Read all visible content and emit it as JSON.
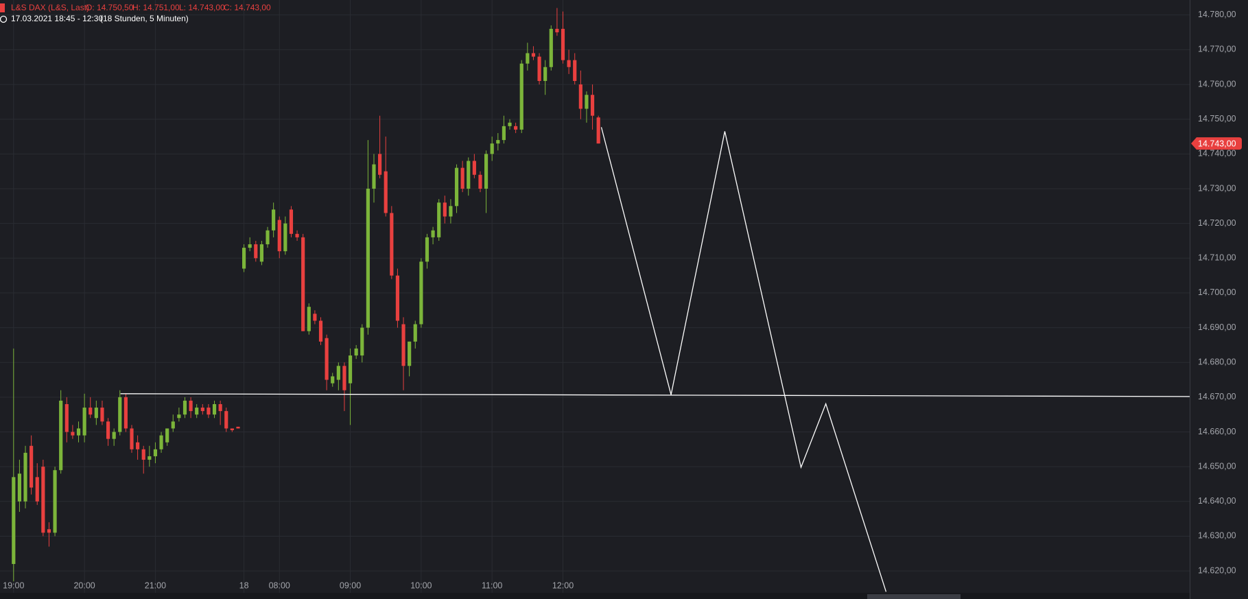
{
  "chart_data": {
    "type": "candlestick",
    "title": "L&S DAX (L&S, Last)",
    "ohlc_labels": [
      "O: 14.750,50",
      "H: 14.751,00",
      "L: 14.743,00",
      "C: 14.743,00"
    ],
    "subtitle": "17.03.2021 18:45 - 12:30",
    "period": "(18 Stunden, 5 Minuten)",
    "up_color": "#7cb53a",
    "down_color": "#e8403f",
    "grid": true,
    "xlim": [
      -2.3,
      199.1
    ],
    "xticks": [
      {
        "value": 0,
        "label": "19:00"
      },
      {
        "value": 12,
        "label": "20:00"
      },
      {
        "value": 24,
        "label": "21:00"
      },
      {
        "value": 39,
        "label": "18"
      },
      {
        "value": 45,
        "label": "08:00"
      },
      {
        "value": 57,
        "label": "09:00"
      },
      {
        "value": 69,
        "label": "10:00"
      },
      {
        "value": 81,
        "label": "11:00"
      },
      {
        "value": 93,
        "label": "12:00"
      }
    ],
    "ylim": [
      14613.7,
      14784.3
    ],
    "yticks": [
      {
        "value": 14620,
        "label": "14.620,00"
      },
      {
        "value": 14630,
        "label": "14.630,00"
      },
      {
        "value": 14640,
        "label": "14.640,00"
      },
      {
        "value": 14650,
        "label": "14.650,00"
      },
      {
        "value": 14660,
        "label": "14.660,00"
      },
      {
        "value": 14670,
        "label": "14.670,00"
      },
      {
        "value": 14680,
        "label": "14.680,00"
      },
      {
        "value": 14690,
        "label": "14.690,00"
      },
      {
        "value": 14700,
        "label": "14.700,00"
      },
      {
        "value": 14710,
        "label": "14.710,00"
      },
      {
        "value": 14720,
        "label": "14.720,00"
      },
      {
        "value": 14730,
        "label": "14.730,00"
      },
      {
        "value": 14740,
        "label": "14.740,00"
      },
      {
        "value": 14750,
        "label": "14.750,00"
      },
      {
        "value": 14760,
        "label": "14.760,00"
      },
      {
        "value": 14770,
        "label": "14.770,00"
      },
      {
        "value": 14780,
        "label": "14.780,00"
      }
    ],
    "last_price": {
      "value": 14743,
      "label": "14.743,00",
      "color": "#e8403f"
    },
    "x": [
      0,
      1,
      2,
      3,
      4,
      5,
      6,
      7,
      8,
      9,
      10,
      11,
      12,
      13,
      14,
      15,
      16,
      17,
      18,
      19,
      20,
      21,
      22,
      23,
      24,
      25,
      26,
      27,
      28,
      29,
      30,
      31,
      32,
      33,
      34,
      35,
      36,
      37,
      38,
      39,
      40,
      41,
      42,
      43,
      44,
      45,
      46,
      47,
      48,
      49,
      50,
      51,
      52,
      53,
      54,
      55,
      56,
      57,
      58,
      59,
      60,
      61,
      62,
      63,
      64,
      65,
      66,
      67,
      68,
      69,
      70,
      71,
      72,
      73,
      74,
      75,
      76,
      77,
      78,
      79,
      80,
      81,
      82,
      83,
      84,
      85,
      86,
      87,
      88,
      89,
      90,
      91,
      92,
      93,
      94,
      95,
      96,
      97,
      98,
      99
    ],
    "open": [
      14622,
      14640,
      14640,
      14656,
      14647,
      14650,
      14632,
      14631,
      14649,
      14668,
      14660,
      14659,
      14659,
      14667,
      14664,
      14667,
      14663,
      14658,
      14660,
      14670,
      14661,
      14657,
      14655,
      14652,
      14653,
      14655,
      14657,
      14661,
      14664,
      14665,
      14669,
      14665,
      14667,
      14667,
      14665,
      14668,
      14666,
      14661,
      14661.5,
      14707,
      14713,
      14714,
      14709,
      14714,
      14718,
      14721,
      14712,
      14724,
      14717,
      14716,
      14689,
      14694,
      14692,
      14687,
      14674,
      14675,
      14679,
      14674,
      14682,
      14682,
      14690,
      14730,
      14740,
      14735,
      14723,
      14705,
      14691,
      14679,
      14686,
      14691,
      14709,
      14716,
      14716,
      14726,
      14722,
      14725,
      14736,
      14730,
      14738,
      14734,
      14730,
      14740,
      14743,
      14744,
      14748,
      14748,
      14747,
      14766,
      14769,
      14768,
      14761,
      14765,
      14776,
      14776,
      14767,
      14767,
      14760,
      14753,
      14757,
      14750.5
    ],
    "high": [
      14684,
      14652,
      14656,
      14659,
      14651,
      14652,
      14634,
      14650,
      14672,
      14670,
      14662,
      14663,
      14671,
      14670,
      14669,
      14669,
      14664,
      14661,
      14672,
      14671,
      14662,
      14659,
      14656,
      14656,
      14657,
      14660,
      14661,
      14665,
      14667,
      14670,
      14670,
      14668,
      14668,
      14668,
      14669,
      14669,
      14667,
      14661,
      14661.5,
      14714,
      14716,
      14715,
      14715,
      14719,
      14726,
      14722,
      14722,
      14725,
      14718,
      14717,
      14697,
      14695,
      14693,
      14688,
      14677,
      14680,
      14680,
      14684,
      14685,
      14691,
      14744,
      14740,
      14751,
      14745,
      14725,
      14707,
      14693,
      14686,
      14692,
      14710,
      14717,
      14719,
      14727,
      14728,
      14727,
      14737,
      14738,
      14739,
      14740,
      14735,
      14741,
      14745,
      14746,
      14751,
      14750,
      14749,
      14767,
      14772,
      14771,
      14769,
      14767,
      14777,
      14782,
      14781,
      14770,
      14769,
      14764,
      14758,
      14760,
      14751
    ],
    "low": [
      14617,
      14637,
      14638,
      14642,
      14639,
      14630,
      14627,
      14630,
      14648,
      14657,
      14658,
      14657,
      14657,
      14664,
      14662,
      14662,
      14656,
      14656,
      14659,
      14660,
      14654,
      14652,
      14648,
      14650,
      14651,
      14654,
      14656,
      14660,
      14663,
      14664,
      14664,
      14664,
      14665,
      14664,
      14664,
      14662,
      14660,
      14660,
      14661,
      14706,
      14712,
      14709,
      14708,
      14713,
      14716,
      14710,
      14711,
      14716,
      14715,
      14689,
      14688,
      14691,
      14685,
      14672,
      14673,
      14672,
      14666,
      14662,
      14681,
      14680,
      14688,
      14726,
      14733,
      14722,
      14704,
      14690,
      14672,
      14676,
      14684,
      14690,
      14707,
      14714,
      14715,
      14720,
      14720,
      14723,
      14729,
      14728,
      14733,
      14729,
      14723,
      14738,
      14741,
      14743,
      14747,
      14746,
      14746,
      14764,
      14767,
      14760,
      14757,
      14764,
      14774,
      14766,
      14763,
      14760,
      14750,
      14749,
      14747,
      14743
    ],
    "close": [
      14647,
      14648,
      14654,
      14644,
      14640,
      14631,
      14631,
      14649,
      14669,
      14660,
      14659,
      14661,
      14667,
      14665,
      14667,
      14663,
      14658,
      14660,
      14670,
      14661,
      14655,
      14655,
      14652,
      14653,
      14655,
      14659,
      14661,
      14663,
      14665,
      14669,
      14666,
      14667,
      14666,
      14665,
      14668,
      14666,
      14661,
      14660.5,
      14661,
      14713,
      14714,
      14710,
      14714,
      14718,
      14724,
      14712,
      14720,
      14717,
      14716,
      14689,
      14696,
      14692,
      14686,
      14675,
      14676,
      14679,
      14672,
      14682,
      14684,
      14690,
      14730,
      14737,
      14734,
      14723,
      14705,
      14692,
      14679,
      14686,
      14691,
      14709,
      14716,
      14718,
      14726,
      14722,
      14725,
      14736,
      14730,
      14738,
      14734,
      14730,
      14740,
      14743,
      14744,
      14748,
      14749,
      14747,
      14766,
      14769,
      14768,
      14761,
      14765,
      14776,
      14775,
      14767,
      14765,
      14761,
      14753,
      14757,
      14751,
      14743
    ],
    "drawings": [
      {
        "color": "#ffffff",
        "x": [
          18.1,
          199.1
        ],
        "y": [
          14671,
          14670.2
        ]
      },
      {
        "color": "#ffffff",
        "x": [
          99.5,
          111.3,
          120.4,
          133.3,
          137.5,
          147.7
        ],
        "y": [
          14747.7,
          14670.7,
          14746.5,
          14649.8,
          14668.1,
          14614
        ]
      }
    ]
  }
}
